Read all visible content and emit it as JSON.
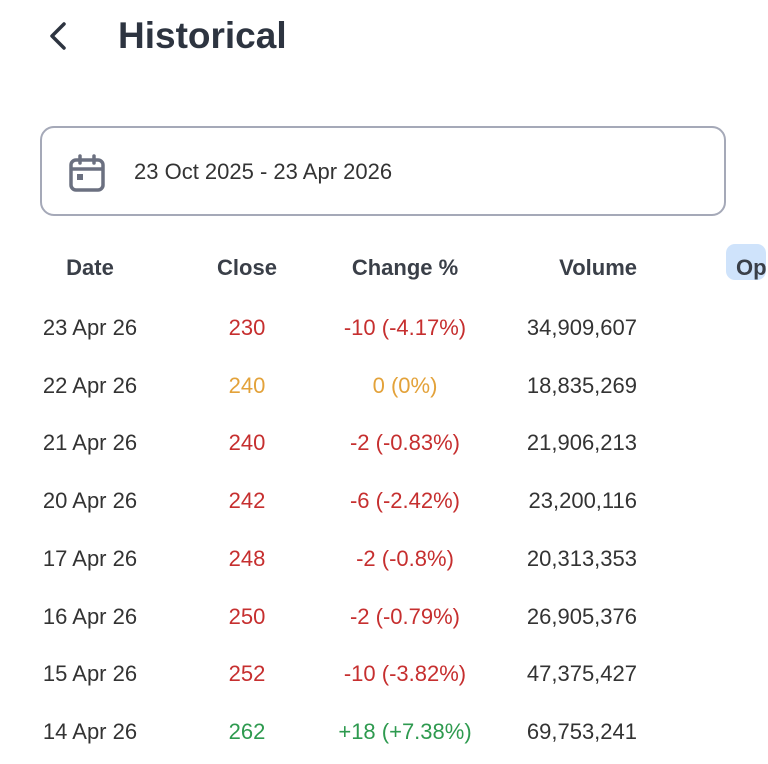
{
  "header": {
    "title": "Historical"
  },
  "date_range": "23 Oct 2025 - 23 Apr 2026",
  "table": {
    "columns": [
      "Date",
      "Close",
      "Change %",
      "Volume",
      "Op"
    ],
    "rows": [
      {
        "date": "23 Apr 26",
        "close": "230",
        "change": "-10 (-4.17%)",
        "volume": "34,909,607",
        "color": "#c62f2f"
      },
      {
        "date": "22 Apr 26",
        "close": "240",
        "change": "0 (0%)",
        "volume": "18,835,269",
        "color": "#e3a23a"
      },
      {
        "date": "21 Apr 26",
        "close": "240",
        "change": "-2 (-0.83%)",
        "volume": "21,906,213",
        "color": "#c62f2f"
      },
      {
        "date": "20 Apr 26",
        "close": "242",
        "change": "-6 (-2.42%)",
        "volume": "23,200,116",
        "color": "#c62f2f"
      },
      {
        "date": "17 Apr 26",
        "close": "248",
        "change": "-2 (-0.8%)",
        "volume": "20,313,353",
        "color": "#c62f2f"
      },
      {
        "date": "16 Apr 26",
        "close": "250",
        "change": "-2 (-0.79%)",
        "volume": "26,905,376",
        "color": "#c62f2f"
      },
      {
        "date": "15 Apr 26",
        "close": "252",
        "change": "-10 (-3.82%)",
        "volume": "47,375,427",
        "color": "#c62f2f"
      },
      {
        "date": "14 Apr 26",
        "close": "262",
        "change": "+18 (+7.38%)",
        "volume": "69,753,241",
        "color": "#2e9a4f"
      }
    ]
  }
}
